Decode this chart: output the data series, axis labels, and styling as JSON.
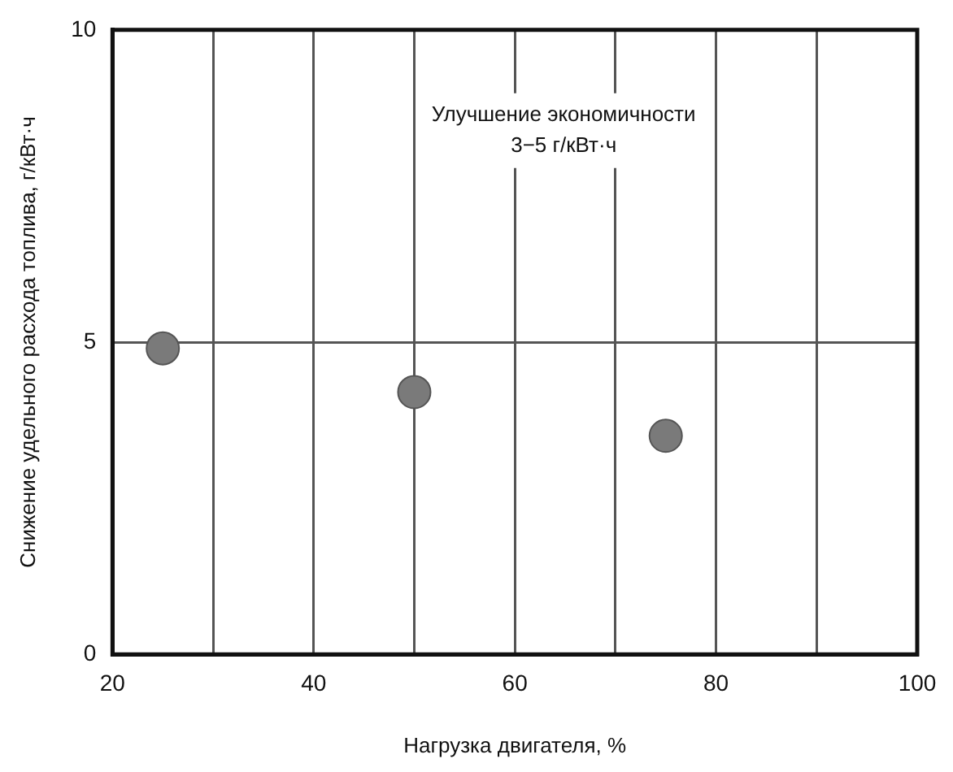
{
  "chart_data": {
    "type": "scatter",
    "xlabel": "Нагрузка двигателя, %",
    "ylabel": "Снижение удельного расхода топлива, г/кВт·ч",
    "x": [
      25,
      50,
      75
    ],
    "values": [
      4.9,
      4.2,
      3.5
    ],
    "color": "#7a7a7a",
    "marker": "circle",
    "xlim": [
      20,
      100
    ],
    "xticks": [
      20,
      {
        "value": 30,
        "label": null
      },
      40,
      {
        "value": 50,
        "label": null
      },
      60,
      {
        "value": 70,
        "label": null
      },
      80,
      {
        "value": 90,
        "label": null
      },
      100
    ],
    "ylim": [
      0,
      10
    ],
    "yticks": [
      0,
      5,
      10
    ],
    "grid": true,
    "legend": false,
    "annotations": [
      "Улучшение экономичности\n3−5 г/кВт·ч"
    ]
  }
}
